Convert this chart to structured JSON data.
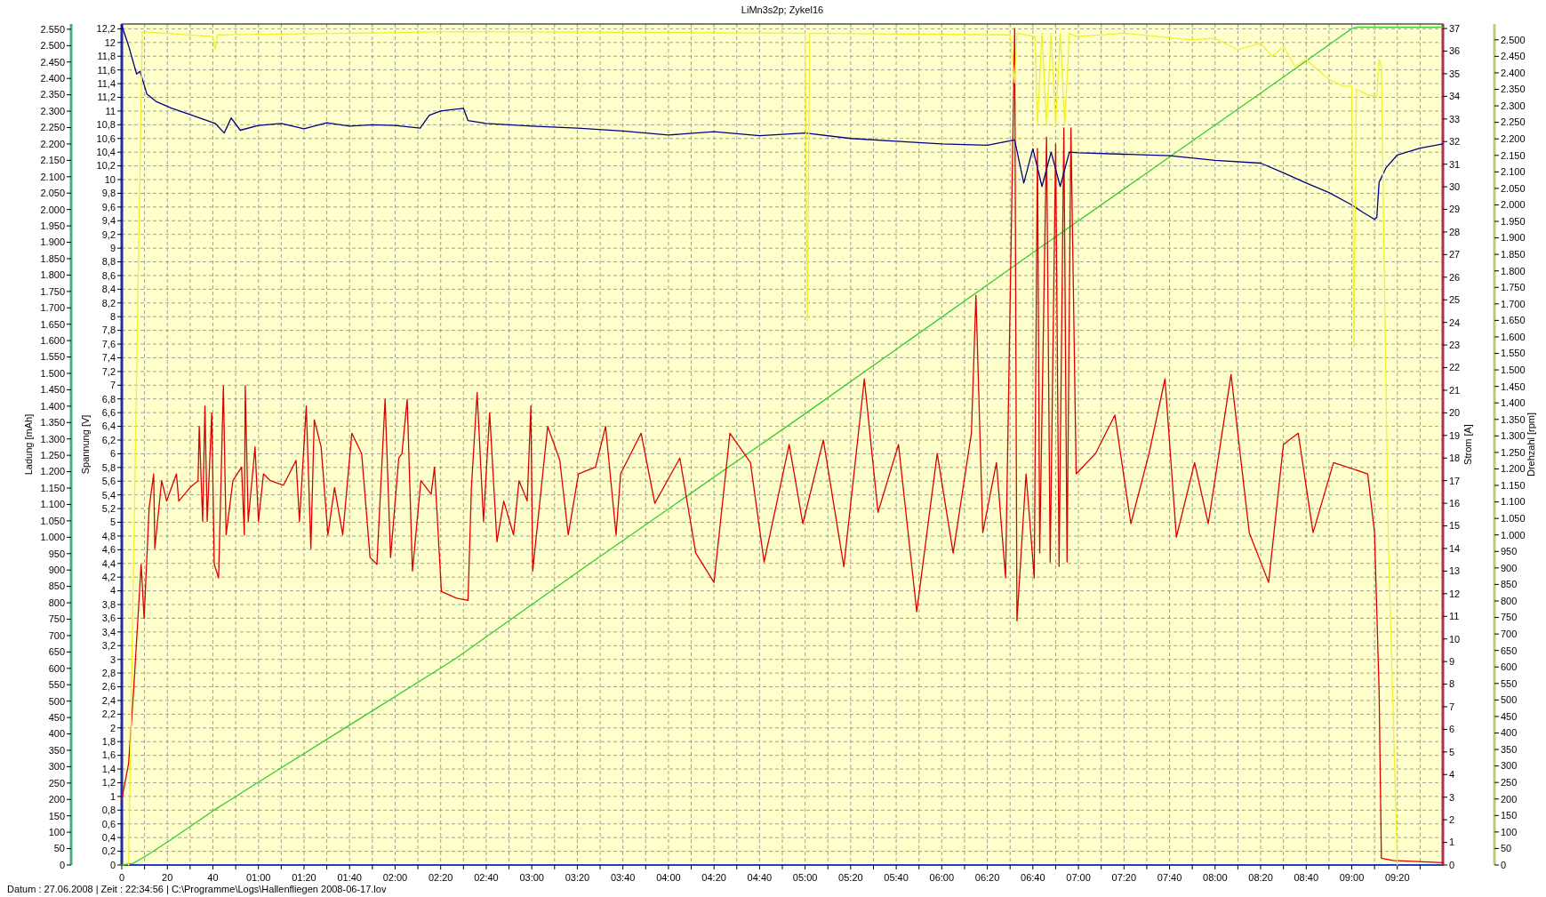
{
  "chart_data": [
    {
      "type": "line",
      "title": "LiMn3s2p; Zykel16",
      "annotations": [
        "Datum : 27.06.2008  |  Zeit : 22:34:56  |  C:\\Programme\\Logs\\Hallenfliegen 2008-06-17.lov"
      ],
      "ylabel": "Spannung [V]",
      "y2label": "Strom [A]",
      "y3label": "Ladung [mAh]",
      "grid": true,
      "xlim": [
        0,
        580
      ],
      "xticks": [
        0,
        {
          "value": 10,
          "label": null
        },
        20,
        {
          "value": 30,
          "label": null
        },
        40,
        {
          "value": 50,
          "label": null
        },
        {
          "value": 60,
          "label": "01:00"
        },
        {
          "value": 70,
          "label": null
        },
        {
          "value": 80,
          "label": "01:20"
        },
        {
          "value": 90,
          "label": null
        },
        {
          "value": 100,
          "label": "01:40"
        },
        {
          "value": 110,
          "label": null
        },
        {
          "value": 120,
          "label": "02:00"
        },
        {
          "value": 130,
          "label": null
        },
        {
          "value": 140,
          "label": "02:20"
        },
        {
          "value": 150,
          "label": null
        },
        {
          "value": 160,
          "label": "02:40"
        },
        {
          "value": 170,
          "label": null
        },
        {
          "value": 180,
          "label": "03:00"
        },
        {
          "value": 190,
          "label": null
        },
        {
          "value": 200,
          "label": "03:20"
        },
        {
          "value": 210,
          "label": null
        },
        {
          "value": 220,
          "label": "03:40"
        },
        {
          "value": 230,
          "label": null
        },
        {
          "value": 240,
          "label": "04:00"
        },
        {
          "value": 250,
          "label": null
        },
        {
          "value": 260,
          "label": "04:20"
        },
        {
          "value": 270,
          "label": null
        },
        {
          "value": 280,
          "label": "04:40"
        },
        {
          "value": 290,
          "label": null
        },
        {
          "value": 300,
          "label": "05:00"
        },
        {
          "value": 310,
          "label": null
        },
        {
          "value": 320,
          "label": "05:20"
        },
        {
          "value": 330,
          "label": null
        },
        {
          "value": 340,
          "label": "05:40"
        },
        {
          "value": 350,
          "label": null
        },
        {
          "value": 360,
          "label": "06:00"
        },
        {
          "value": 370,
          "label": null
        },
        {
          "value": 380,
          "label": "06:20"
        },
        {
          "value": 390,
          "label": null
        },
        {
          "value": 400,
          "label": "06:40"
        },
        {
          "value": 410,
          "label": null
        },
        {
          "value": 420,
          "label": "07:00"
        },
        {
          "value": 430,
          "label": null
        },
        {
          "value": 440,
          "label": "07:20"
        },
        {
          "value": 450,
          "label": null
        },
        {
          "value": 460,
          "label": "07:40"
        },
        {
          "value": 470,
          "label": null
        },
        {
          "value": 480,
          "label": "08:00"
        },
        {
          "value": 490,
          "label": null
        },
        {
          "value": 500,
          "label": "08:20"
        },
        {
          "value": 510,
          "label": null
        },
        {
          "value": 520,
          "label": "08:40"
        },
        {
          "value": 530,
          "label": null
        },
        {
          "value": 540,
          "label": "09:00"
        },
        {
          "value": 550,
          "label": null
        },
        {
          "value": 560,
          "label": "09:20"
        },
        {
          "value": 570,
          "label": null
        }
      ],
      "ylim": [
        0,
        12.27
      ],
      "yticks": [
        0,
        {
          "value": 0.2,
          "label": "0,2"
        },
        {
          "value": 0.4,
          "label": "0,4"
        },
        {
          "value": 0.6,
          "label": "0,6"
        },
        {
          "value": 0.8,
          "label": "0,8"
        },
        1,
        {
          "value": 1.2,
          "label": "1,2"
        },
        {
          "value": 1.4,
          "label": "1,4"
        },
        {
          "value": 1.6,
          "label": "1,6"
        },
        {
          "value": 1.8,
          "label": "1,8"
        },
        2,
        {
          "value": 2.2,
          "label": "2,2"
        },
        {
          "value": 2.4,
          "label": "2,4"
        },
        {
          "value": 2.6,
          "label": "2,6"
        },
        {
          "value": 2.8,
          "label": "2,8"
        },
        3,
        {
          "value": 3.2,
          "label": "3,2"
        },
        {
          "value": 3.4,
          "label": "3,4"
        },
        {
          "value": 3.6,
          "label": "3,6"
        },
        {
          "value": 3.8,
          "label": "3,8"
        },
        4,
        {
          "value": 4.2,
          "label": "4,2"
        },
        {
          "value": 4.4,
          "label": "4,4"
        },
        {
          "value": 4.6,
          "label": "4,6"
        },
        {
          "value": 4.8,
          "label": "4,8"
        },
        5,
        {
          "value": 5.2,
          "label": "5,2"
        },
        {
          "value": 5.4,
          "label": "5,4"
        },
        {
          "value": 5.6,
          "label": "5,6"
        },
        {
          "value": 5.8,
          "label": "5,8"
        },
        6,
        {
          "value": 6.2,
          "label": "6,2"
        },
        {
          "value": 6.4,
          "label": "6,4"
        },
        {
          "value": 6.6,
          "label": "6,6"
        },
        {
          "value": 6.8,
          "label": "6,8"
        },
        7,
        {
          "value": 7.2,
          "label": "7,2"
        },
        {
          "value": 7.4,
          "label": "7,4"
        },
        {
          "value": 7.6,
          "label": "7,6"
        },
        {
          "value": 7.8,
          "label": "7,8"
        },
        8,
        {
          "value": 8.2,
          "label": "8,2"
        },
        {
          "value": 8.4,
          "label": "8,4"
        },
        {
          "value": 8.6,
          "label": "8,6"
        },
        {
          "value": 8.8,
          "label": "8,8"
        },
        9,
        {
          "value": 9.2,
          "label": "9,2"
        },
        {
          "value": 9.4,
          "label": "9,4"
        },
        {
          "value": 9.6,
          "label": "9,6"
        },
        {
          "value": 9.8,
          "label": "9,8"
        },
        10,
        {
          "value": 10.2,
          "label": "10,2"
        },
        {
          "value": 10.4,
          "label": "10,4"
        },
        {
          "value": 10.6,
          "label": "10,6"
        },
        {
          "value": 10.8,
          "label": "10,8"
        },
        11,
        {
          "value": 11.2,
          "label": "11,2"
        },
        {
          "value": 11.4,
          "label": "11,4"
        },
        {
          "value": 11.6,
          "label": "11,6"
        },
        {
          "value": 11.8,
          "label": "11,8"
        },
        12,
        {
          "value": 12.2,
          "label": "12,2"
        }
      ],
      "y2lim": [
        0,
        37.2
      ],
      "y2ticks": [
        0,
        1,
        2,
        3,
        4,
        5,
        6,
        7,
        8,
        9,
        10,
        11,
        12,
        13,
        14,
        15,
        16,
        17,
        18,
        19,
        20,
        21,
        22,
        23,
        24,
        25,
        26,
        27,
        28,
        29,
        30,
        31,
        32,
        33,
        34,
        35,
        36,
        37
      ],
      "y3lim": [
        0,
        2566
      ],
      "y3ticks": [
        0,
        50,
        100,
        150,
        200,
        250,
        300,
        350,
        400,
        450,
        500,
        550,
        600,
        650,
        700,
        750,
        800,
        850,
        900,
        950,
        {
          "value": 1000,
          "label": "1.000"
        },
        {
          "value": 1050,
          "label": "1.050"
        },
        {
          "value": 1100,
          "label": "1.100"
        },
        {
          "value": 1150,
          "label": "1.150"
        },
        {
          "value": 1200,
          "label": "1.200"
        },
        {
          "value": 1250,
          "label": "1.250"
        },
        {
          "value": 1300,
          "label": "1.300"
        },
        {
          "value": 1350,
          "label": "1.350"
        },
        {
          "value": 1400,
          "label": "1.400"
        },
        {
          "value": 1450,
          "label": "1.450"
        },
        {
          "value": 1500,
          "label": "1.500"
        },
        {
          "value": 1550,
          "label": "1.550"
        },
        {
          "value": 1600,
          "label": "1.600"
        },
        {
          "value": 1650,
          "label": "1.650"
        },
        {
          "value": 1700,
          "label": "1.700"
        },
        {
          "value": 1750,
          "label": "1.750"
        },
        {
          "value": 1800,
          "label": "1.800"
        },
        {
          "value": 1850,
          "label": "1.850"
        },
        {
          "value": 1900,
          "label": "1.900"
        },
        {
          "value": 1950,
          "label": "1.950"
        },
        {
          "value": 2000,
          "label": "2.000"
        },
        {
          "value": 2050,
          "label": "2.050"
        },
        {
          "value": 2100,
          "label": "2.100"
        },
        {
          "value": 2150,
          "label": "2.150"
        },
        {
          "value": 2200,
          "label": "2.200"
        },
        {
          "value": 2250,
          "label": "2.250"
        },
        {
          "value": 2300,
          "label": "2.300"
        },
        {
          "value": 2350,
          "label": "2.350"
        },
        {
          "value": 2400,
          "label": "2.400"
        },
        {
          "value": 2450,
          "label": "2.450"
        },
        {
          "value": 2500,
          "label": "2.500"
        },
        {
          "value": 2550,
          "label": "2.550"
        }
      ],
      "series": [
        {
          "axis": "y3",
          "color": "#33cc33",
          "x": [
            0,
            5,
            10,
            20,
            40,
            60,
            100,
            140,
            147,
            200,
            300,
            400,
            500,
            540,
            542,
            580
          ],
          "values": [
            0,
            5,
            25,
            70,
            165,
            253,
            427,
            601,
            632,
            893,
            1377,
            1868,
            2355,
            2552,
            2556,
            2556
          ]
        },
        {
          "axis": "y2",
          "color": "#dd0000",
          "x": [
            0,
            3,
            5.3,
            8.5,
            9.8,
            12,
            14,
            14.5,
            17.5,
            19.7,
            24,
            25,
            30,
            33.5,
            34,
            35.5,
            36.5,
            37.5,
            39.5,
            40.6,
            42.5,
            44.6,
            45.8,
            48.8,
            52.6,
            53.8,
            54.2,
            55.5,
            58.5,
            60,
            62.2,
            65.2,
            71,
            76.5,
            78,
            81,
            83,
            84.5,
            87.5,
            90.5,
            93.4,
            97,
            101,
            105.3,
            109,
            112,
            115.6,
            118,
            121.6,
            123,
            125.3,
            127.6,
            131.3,
            135.8,
            137.3,
            140.3,
            147,
            152,
            153.5,
            156,
            158.8,
            161.5,
            164.7,
            167.7,
            172,
            174.4,
            178,
            179.6,
            180.4,
            184.8,
            187,
            192.3,
            196,
            200.5,
            208,
            212.4,
            217,
            219,
            228,
            234,
            245,
            252,
            260,
            267,
            276,
            282,
            293,
            299,
            308,
            317,
            326,
            332,
            341,
            349,
            358,
            365,
            373,
            375,
            378,
            384,
            388,
            392,
            393,
            397,
            400.6,
            402,
            403,
            406,
            407.6,
            410,
            411.5,
            413.6,
            415,
            416.7,
            419,
            427.5,
            436,
            443,
            451,
            458,
            463,
            471,
            477,
            487,
            495,
            503.5,
            510,
            516.5,
            523,
            532,
            547,
            550,
            552,
            553,
            558,
            580
          ],
          "values": [
            2.9,
            4.5,
            7.9,
            13.3,
            10.9,
            15.8,
            17.3,
            14.0,
            17.0,
            16.1,
            17.3,
            16.1,
            16.7,
            17.0,
            19.4,
            15.2,
            20.3,
            15.2,
            20.0,
            13.3,
            12.7,
            21.2,
            14.6,
            17.0,
            17.6,
            14.6,
            21.2,
            15.2,
            18.5,
            15.2,
            17.3,
            17.0,
            16.8,
            17.9,
            15.2,
            20.3,
            14.0,
            19.7,
            18.5,
            14.6,
            16.7,
            14.6,
            19.1,
            18.2,
            13.6,
            13.3,
            20.6,
            13.6,
            18.0,
            18.2,
            20.6,
            13.0,
            17.0,
            16.4,
            17.6,
            12.1,
            11.8,
            11.7,
            16.7,
            20.9,
            15.2,
            20.0,
            14.3,
            16.1,
            14.6,
            17.0,
            16.1,
            20.3,
            13.0,
            17.3,
            19.4,
            17.9,
            14.6,
            17.3,
            17.6,
            19.4,
            14.6,
            17.3,
            19.1,
            16.0,
            18.0,
            13.8,
            12.5,
            19.1,
            17.8,
            13.4,
            18.6,
            15.1,
            18.8,
            13.2,
            21.5,
            15.6,
            18.6,
            11.2,
            18.2,
            13.8,
            19.1,
            25.2,
            14.7,
            17.8,
            12.7,
            37,
            10.8,
            17.3,
            12.7,
            31.7,
            13.8,
            32.2,
            13.4,
            31.9,
            13.2,
            32.6,
            13.4,
            32.6,
            17.3,
            18.2,
            19.9,
            15.1,
            18.2,
            21.5,
            14.5,
            17.8,
            15.1,
            21.7,
            14.7,
            12.5,
            18.6,
            19.1,
            14.7,
            17.8,
            17.3,
            14.7,
            7.7,
            0.3,
            0.2,
            0.1
          ]
        },
        {
          "color": "#000080",
          "x": [
            0,
            3,
            6.5,
            8,
            11,
            15,
            22,
            30,
            41,
            45,
            48,
            52,
            60,
            70,
            80,
            90,
            100,
            110,
            120,
            131,
            135,
            140,
            150,
            152,
            160,
            180,
            200,
            220,
            240,
            260,
            280,
            300,
            320,
            340,
            360,
            380,
            392,
            396,
            400,
            404,
            408,
            412,
            416,
            420,
            440,
            460,
            480,
            500,
            510,
            520,
            530,
            540,
            545,
            550,
            551,
            552,
            555,
            560,
            570,
            580
          ],
          "values": [
            12.25,
            11.95,
            11.54,
            11.58,
            11.25,
            11.14,
            11.04,
            10.95,
            10.82,
            10.68,
            10.9,
            10.72,
            10.79,
            10.82,
            10.74,
            10.83,
            10.78,
            10.8,
            10.79,
            10.75,
            10.94,
            11.0,
            11.04,
            10.86,
            10.82,
            10.78,
            10.75,
            10.71,
            10.65,
            10.7,
            10.64,
            10.68,
            10.6,
            10.56,
            10.52,
            10.5,
            10.58,
            9.95,
            10.45,
            9.9,
            10.4,
            9.9,
            10.4,
            10.39,
            10.37,
            10.35,
            10.28,
            10.24,
            10.1,
            9.95,
            9.81,
            9.63,
            9.52,
            9.42,
            9.45,
            9.96,
            10.17,
            10.36,
            10.46,
            10.52
          ]
        }
      ]
    },
    {
      "type": "line",
      "ylabel": "Drehzahl [rpm]",
      "tick_labels": "y",
      "xlim": [
        0,
        580
      ],
      "ylim": [
        0,
        2548
      ],
      "yticks": [
        0,
        50,
        100,
        150,
        200,
        250,
        300,
        350,
        400,
        450,
        500,
        550,
        600,
        650,
        700,
        750,
        800,
        850,
        900,
        950,
        {
          "value": 1000,
          "label": "1.000"
        },
        {
          "value": 1050,
          "label": "1.050"
        },
        {
          "value": 1100,
          "label": "1.100"
        },
        {
          "value": 1150,
          "label": "1.150"
        },
        {
          "value": 1200,
          "label": "1.200"
        },
        {
          "value": 1250,
          "label": "1.250"
        },
        {
          "value": 1300,
          "label": "1.300"
        },
        {
          "value": 1350,
          "label": "1.350"
        },
        {
          "value": 1400,
          "label": "1.400"
        },
        {
          "value": 1450,
          "label": "1.450"
        },
        {
          "value": 1500,
          "label": "1.500"
        },
        {
          "value": 1550,
          "label": "1.550"
        },
        {
          "value": 1600,
          "label": "1.600"
        },
        {
          "value": 1650,
          "label": "1.650"
        },
        {
          "value": 1700,
          "label": "1.700"
        },
        {
          "value": 1750,
          "label": "1.750"
        },
        {
          "value": 1800,
          "label": "1.800"
        },
        {
          "value": 1850,
          "label": "1.850"
        },
        {
          "value": 1900,
          "label": "1.900"
        },
        {
          "value": 1950,
          "label": "1.950"
        },
        {
          "value": 2000,
          "label": "2.000"
        },
        {
          "value": 2050,
          "label": "2.050"
        },
        {
          "value": 2100,
          "label": "2.100"
        },
        {
          "value": 2150,
          "label": "2.150"
        },
        {
          "value": 2200,
          "label": "2.200"
        },
        {
          "value": 2250,
          "label": "2.250"
        },
        {
          "value": 2300,
          "label": "2.300"
        },
        {
          "value": 2350,
          "label": "2.350"
        },
        {
          "value": 2400,
          "label": "2.400"
        },
        {
          "value": 2450,
          "label": "2.450"
        },
        {
          "value": 2500,
          "label": "2.500"
        }
      ],
      "series": [
        {
          "color": "#f0f030",
          "x": [
            3,
            9,
            40,
            41,
            42,
            100,
            150,
            300,
            301,
            302,
            390,
            392,
            393,
            401,
            402,
            404,
            406,
            408,
            410,
            412,
            414,
            416,
            419,
            440,
            470,
            480,
            490,
            500,
            505,
            510,
            515,
            520,
            525,
            530,
            536,
            540,
            541,
            542,
            548,
            551,
            552,
            553,
            556,
            560
          ],
          "values": [
            0,
            2525,
            2510,
            2470,
            2515,
            2520,
            2525,
            2520,
            1650,
            2520,
            2515,
            2370,
            2520,
            2510,
            2240,
            2520,
            2240,
            2520,
            2240,
            2520,
            2240,
            2520,
            2510,
            2520,
            2500,
            2505,
            2470,
            2490,
            2450,
            2480,
            2420,
            2440,
            2410,
            2380,
            2360,
            2360,
            1570,
            2350,
            2330,
            2330,
            2440,
            2420,
            1000,
            0
          ]
        }
      ]
    }
  ]
}
